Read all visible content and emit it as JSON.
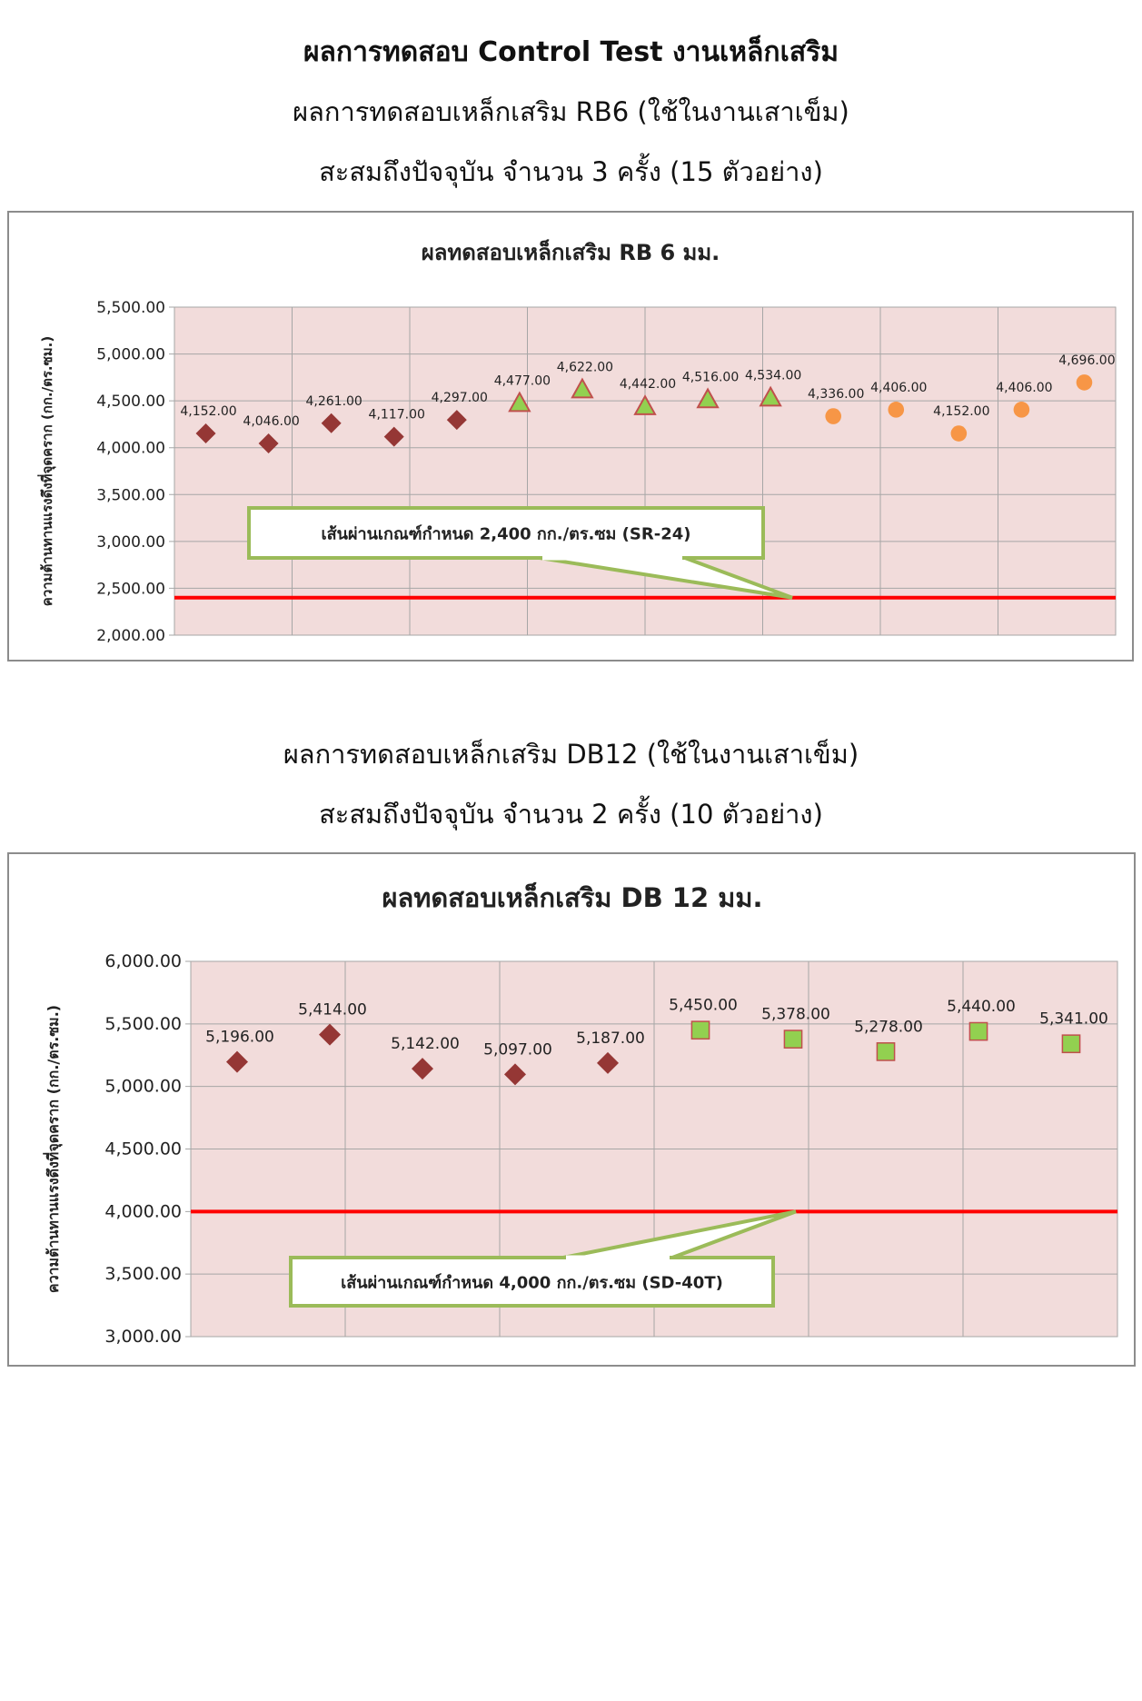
{
  "page": {
    "title": "ผลการทดสอบ Control Test งานเหล็กเสริม",
    "rb_subtitle_1": "ผลการทดสอบเหล็กเสริม RB6 (ใช้ในงานเสาเข็ม)",
    "rb_subtitle_2": "สะสมถึงปัจจุบัน จำนวน 3 ครั้ง (15 ตัวอย่าง)",
    "db_subtitle_1": "ผลการทดสอบเหล็กเสริม DB12 (ใช้ในงานเสาเข็ม)",
    "db_subtitle_2": "สะสมถึงปัจจุบัน จำนวน 2 ครั้ง (10 ตัวอย่าง)"
  },
  "chart_data": [
    {
      "type": "scatter",
      "title": "ผลทดสอบเหล็กเสริม RB 6 มม.",
      "xlabel": "",
      "ylabel": "ความต้านทานแรงดึงที่จุดคราก (กก./ตร.ซม.)",
      "ylim": [
        2000,
        5500
      ],
      "yticks": [
        "5,500.00",
        "5,000.00",
        "4,500.00",
        "4,000.00",
        "3,500.00",
        "3,000.00",
        "2,500.00",
        "2,000.00"
      ],
      "grid": true,
      "series": [
        {
          "marker": "diamond",
          "color": "#953735",
          "x": [
            1,
            2,
            3,
            4,
            5
          ],
          "values": [
            4152,
            4046,
            4261,
            4117,
            4297
          ],
          "labels": [
            "4,152.00",
            "4,046.00",
            "4,261.00",
            "4,117.00",
            "4,297.00"
          ]
        },
        {
          "marker": "triangle",
          "color": "#92d050",
          "stroke": "#c0504d",
          "x": [
            6,
            7,
            8,
            9,
            10
          ],
          "values": [
            4477,
            4622,
            4442,
            4516,
            4534
          ],
          "labels": [
            "4,477.00",
            "4,622.00",
            "4,442.00",
            "4,516.00",
            "4,534.00"
          ]
        },
        {
          "marker": "circle",
          "color": "#f79646",
          "x": [
            11,
            12,
            13,
            14,
            15
          ],
          "values": [
            4336,
            4406,
            4152,
            4406,
            4696
          ],
          "labels": [
            "4,336.00",
            "4,406.00",
            "4,152.00",
            "4,406.00",
            "4,696.00"
          ]
        }
      ],
      "threshold": {
        "value": 2400,
        "color": "#ff0000"
      },
      "annotation": "เส้นผ่านเกณฑ์กำหนด 2,400 กก./ตร.ซม (SR-24)"
    },
    {
      "type": "scatter",
      "title": "ผลทดสอบเหล็กเสริม DB 12 มม.",
      "xlabel": "",
      "ylabel": "ความต้านทานแรงดึงที่จุดคราก (กก./ตร.ซม.)",
      "ylim": [
        3000,
        6000
      ],
      "yticks": [
        "6,000.00",
        "5,500.00",
        "5,000.00",
        "4,500.00",
        "4,000.00",
        "3,500.00",
        "3,000.00"
      ],
      "grid": true,
      "series": [
        {
          "marker": "diamond",
          "color": "#953735",
          "x": [
            1,
            2,
            3,
            4,
            5
          ],
          "values": [
            5196,
            5414,
            5142,
            5097,
            5187
          ],
          "labels": [
            "5,196.00",
            "5,414.00",
            "5,142.00",
            "5,097.00",
            "5,187.00"
          ]
        },
        {
          "marker": "square",
          "color": "#92d050",
          "stroke": "#c0504d",
          "x": [
            6,
            7,
            8,
            9,
            10
          ],
          "values": [
            5450,
            5378,
            5278,
            5440,
            5341
          ],
          "labels": [
            "5,450.00",
            "5,378.00",
            "5,278.00",
            "5,440.00",
            "5,341.00"
          ]
        }
      ],
      "threshold": {
        "value": 4000,
        "color": "#ff0000"
      },
      "annotation": "เส้นผ่านเกณฑ์กำหนด 4,000 กก./ตร.ซม (SD-40T)"
    }
  ]
}
